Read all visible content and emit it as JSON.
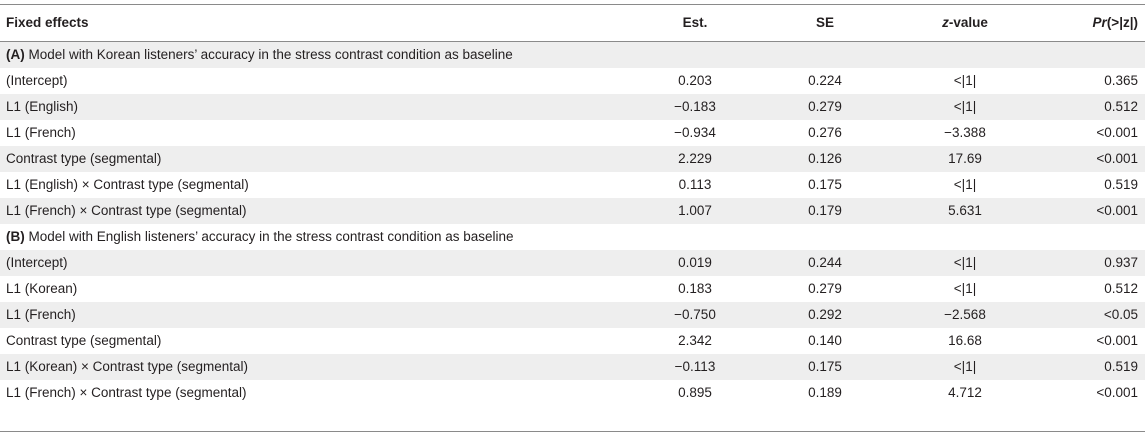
{
  "header": {
    "col0": "Fixed effects",
    "col1": "Est.",
    "col2": "SE",
    "col3_italic": "z",
    "col3_rest": "-value",
    "col4_italic": "Pr",
    "col4_rest": "(>|z|)"
  },
  "sectionA": {
    "tag": "(A)",
    "title": "Model with Korean listeners’ accuracy in the stress contrast condition as baseline",
    "rows": [
      {
        "effect": "(Intercept)",
        "est": "0.203",
        "se": "0.224",
        "z": "<|1|",
        "p": "0.365"
      },
      {
        "effect": "L1 (English)",
        "est": "−0.183",
        "se": "0.279",
        "z": "<|1|",
        "p": "0.512"
      },
      {
        "effect": "L1 (French)",
        "est": "−0.934",
        "se": "0.276",
        "z": "−3.388",
        "p": "<0.001"
      },
      {
        "effect": "Contrast type (segmental)",
        "est": "2.229",
        "se": "0.126",
        "z": "17.69",
        "p": "<0.001"
      },
      {
        "effect": "L1 (English) × Contrast type (segmental)",
        "est": "0.113",
        "se": "0.175",
        "z": "<|1|",
        "p": "0.519"
      },
      {
        "effect": "L1 (French) × Contrast type (segmental)",
        "est": "1.007",
        "se": "0.179",
        "z": "5.631",
        "p": "<0.001"
      }
    ]
  },
  "sectionB": {
    "tag": "(B)",
    "title": "Model with English listeners’ accuracy in the stress contrast condition as baseline",
    "rows": [
      {
        "effect": "(Intercept)",
        "est": "0.019",
        "se": "0.244",
        "z": "<|1|",
        "p": "0.937"
      },
      {
        "effect": "L1 (Korean)",
        "est": "0.183",
        "se": "0.279",
        "z": "<|1|",
        "p": "0.512"
      },
      {
        "effect": "L1 (French)",
        "est": "−0.750",
        "se": "0.292",
        "z": "−2.568",
        "p": "<0.05"
      },
      {
        "effect": "Contrast type (segmental)",
        "est": "2.342",
        "se": "0.140",
        "z": "16.68",
        "p": "<0.001"
      },
      {
        "effect": "L1 (Korean) × Contrast type (segmental)",
        "est": "−0.113",
        "se": "0.175",
        "z": "<|1|",
        "p": "0.519"
      },
      {
        "effect": "L1 (French) × Contrast type (segmental)",
        "est": "0.895",
        "se": "0.189",
        "z": "4.712",
        "p": "<0.001"
      }
    ]
  }
}
